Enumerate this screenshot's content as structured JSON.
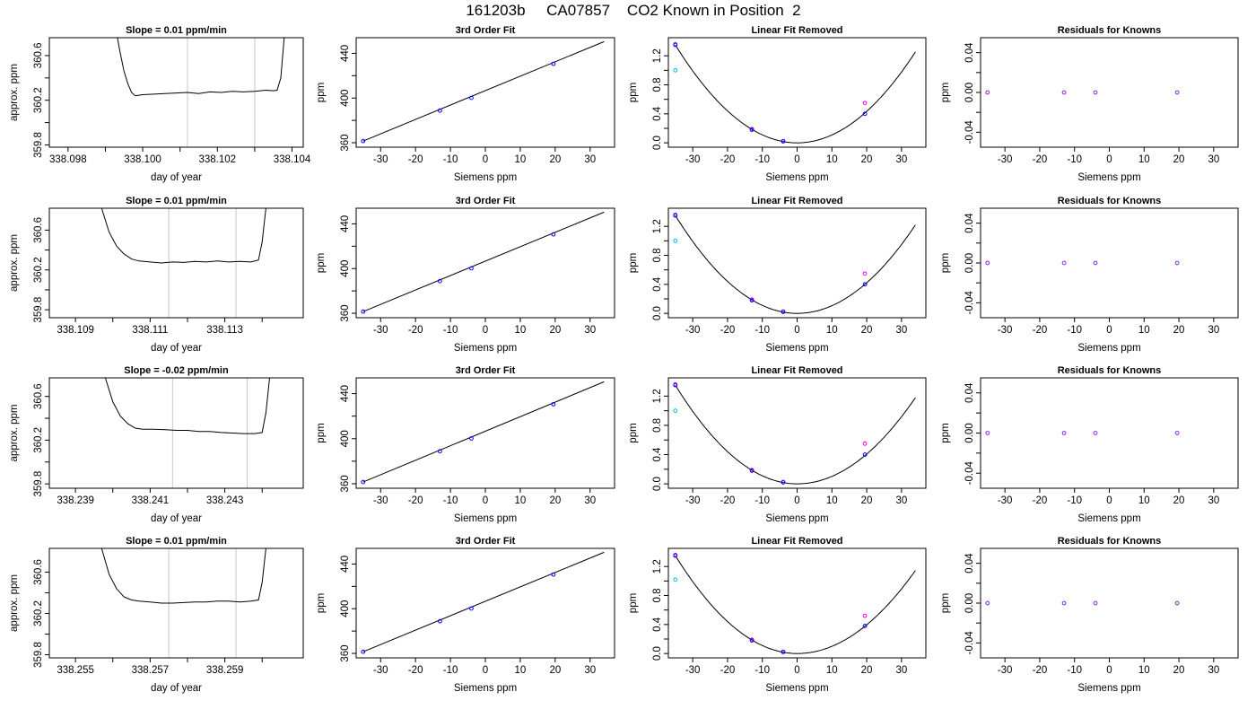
{
  "figure_title": "161203b     CA07857    CO2 Known in Position  2",
  "colors": {
    "trace": "#000000",
    "fit_line": "#000000",
    "marker_line": "#c8c8c8",
    "points_blue": "#0000ff",
    "points_magenta": "#ff00ff",
    "points_cyan": "#00bfff",
    "points_purple": "#8a2be2",
    "frame": "#000000"
  },
  "chart_data": [
    {
      "type": "line",
      "title": "Slope =  0.01  ppm/min",
      "xlabel": "day of year",
      "ylabel": "approx. ppm",
      "xlim": [
        338.0975,
        338.1043
      ],
      "ylim": [
        359.78,
        360.76
      ],
      "xticks": [
        338.098,
        338.099,
        338.1,
        338.101,
        338.102,
        338.103,
        338.104
      ],
      "xtick_labels": [
        "338.098",
        "",
        "338.100",
        "",
        "338.102",
        "",
        "338.104"
      ],
      "yticks": [
        359.8,
        360.0,
        360.2,
        360.4,
        360.6
      ],
      "ytick_labels": [
        "359.8",
        "",
        "360.2",
        "",
        "360.6"
      ],
      "vlines": [
        338.1012,
        338.103
      ],
      "trace": {
        "x": [
          338.0993,
          338.0994,
          338.0995,
          338.0996,
          338.0997,
          338.0998,
          338.0999,
          338.1,
          338.1003,
          338.1006,
          338.1009,
          338.1012,
          338.1015,
          338.1018,
          338.1021,
          338.1024,
          338.1027,
          338.103,
          338.1033,
          338.1035,
          338.1036,
          338.1037,
          338.1038
        ],
        "y": [
          360.8,
          360.62,
          360.46,
          360.35,
          360.27,
          360.24,
          360.245,
          360.25,
          360.255,
          360.26,
          360.265,
          360.27,
          360.26,
          360.275,
          360.27,
          360.28,
          360.275,
          360.28,
          360.29,
          360.285,
          360.29,
          360.4,
          360.8
        ]
      }
    },
    {
      "type": "scatter",
      "title": "3rd Order Fit",
      "xlabel": "Siemens ppm",
      "ylabel": "ppm",
      "xlim": [
        -37,
        37
      ],
      "ylim": [
        356,
        454
      ],
      "xticks": [
        -30,
        -20,
        -10,
        0,
        10,
        20,
        30
      ],
      "yticks": [
        360,
        380,
        400,
        420,
        440
      ],
      "ytick_labels": [
        "360",
        "",
        "400",
        "",
        "440"
      ],
      "line": {
        "x": [
          -35,
          34
        ],
        "y": [
          361.5,
          450.5
        ]
      },
      "points": {
        "x": [
          -35,
          -13,
          -4,
          19.5
        ],
        "y": [
          361.5,
          388.8,
          400.2,
          430.6
        ]
      }
    },
    {
      "type": "scatter",
      "title": "Linear Fit Removed",
      "xlabel": "Siemens ppm",
      "ylabel": "ppm",
      "xlim": [
        -37,
        37
      ],
      "ylim": [
        -0.06,
        1.45
      ],
      "xticks": [
        -30,
        -20,
        -10,
        0,
        10,
        20,
        30
      ],
      "yticks": [
        0.0,
        0.4,
        0.8,
        1.2
      ],
      "yminor": [
        0.2,
        0.6,
        1.0
      ],
      "curve": {
        "vertex_x": 0,
        "vertex_y": 0,
        "a_left": 0.001102,
        "a_right": 0.001085,
        "x_from": -35,
        "x_to": 34
      },
      "points_blue": {
        "x": [
          -35,
          -13,
          -4,
          19.5
        ],
        "y": [
          1.35,
          0.18,
          0.02,
          0.4
        ]
      },
      "points_magenta": {
        "x": [
          -35,
          -13,
          -4,
          19.5
        ],
        "y": [
          1.36,
          0.19,
          0.025,
          0.55
        ]
      },
      "points_cyan": {
        "x": [
          -35
        ],
        "y": [
          1.0
        ]
      }
    },
    {
      "type": "scatter",
      "title": "Residuals for Knowns",
      "xlabel": "Siemens ppm",
      "ylabel": "ppm",
      "xlim": [
        -37,
        37
      ],
      "ylim": [
        -0.055,
        0.055
      ],
      "xticks": [
        -30,
        -20,
        -10,
        0,
        10,
        20,
        30
      ],
      "yticks": [
        -0.04,
        -0.02,
        0.0,
        0.02,
        0.04
      ],
      "ytick_labels": [
        "-0.04",
        "",
        "0.00",
        "",
        "0.04"
      ],
      "points": {
        "x": [
          -35,
          -13,
          -4,
          19.5
        ],
        "y": [
          0,
          0,
          0,
          0
        ]
      }
    },
    {
      "type": "line",
      "title": "Slope =  0.01  ppm/min",
      "xlabel": "day of year",
      "ylabel": "approx. ppm",
      "xlim": [
        338.1083,
        338.1151
      ],
      "ylim": [
        359.72,
        360.82
      ],
      "xticks": [
        338.109,
        338.11,
        338.111,
        338.112,
        338.113,
        338.114
      ],
      "xtick_labels": [
        "338.109",
        "",
        "338.111",
        "",
        "338.113",
        ""
      ],
      "yticks": [
        359.8,
        360.0,
        360.2,
        360.4,
        360.6
      ],
      "ytick_labels": [
        "359.8",
        "",
        "360.2",
        "",
        "360.6"
      ],
      "vlines": [
        338.1115,
        338.1133
      ],
      "trace": {
        "x": [
          338.1097,
          338.1099,
          338.1101,
          338.1103,
          338.1105,
          338.1107,
          338.111,
          338.1113,
          338.1116,
          338.1119,
          338.1122,
          338.1125,
          338.1128,
          338.1131,
          338.1134,
          338.1137,
          338.1139,
          338.114,
          338.1141
        ],
        "y": [
          360.82,
          360.58,
          360.44,
          360.36,
          360.31,
          360.29,
          360.28,
          360.27,
          360.28,
          360.275,
          360.285,
          360.28,
          360.29,
          360.28,
          360.285,
          360.28,
          360.3,
          360.48,
          360.82
        ]
      }
    },
    {
      "type": "scatter",
      "title": "3rd Order Fit",
      "xlabel": "Siemens ppm",
      "ylabel": "ppm",
      "xlim": [
        -37,
        37
      ],
      "ylim": [
        356,
        454
      ],
      "xticks": [
        -30,
        -20,
        -10,
        0,
        10,
        20,
        30
      ],
      "yticks": [
        360,
        380,
        400,
        420,
        440
      ],
      "ytick_labels": [
        "360",
        "",
        "400",
        "",
        "440"
      ],
      "line": {
        "x": [
          -35,
          34
        ],
        "y": [
          361.5,
          450.5
        ]
      },
      "points": {
        "x": [
          -35,
          -13,
          -4,
          19.5
        ],
        "y": [
          361.5,
          388.8,
          400.2,
          430.6
        ]
      }
    },
    {
      "type": "scatter",
      "title": "Linear Fit Removed",
      "xlabel": "Siemens ppm",
      "ylabel": "ppm",
      "xlim": [
        -37,
        37
      ],
      "ylim": [
        -0.06,
        1.45
      ],
      "xticks": [
        -30,
        -20,
        -10,
        0,
        10,
        20,
        30
      ],
      "yticks": [
        0.0,
        0.4,
        0.8,
        1.2
      ],
      "yminor": [
        0.2,
        0.6,
        1.0
      ],
      "curve": {
        "vertex_x": 0,
        "vertex_y": 0,
        "a_left": 0.001102,
        "a_right": 0.001055,
        "x_from": -35,
        "x_to": 34
      },
      "points_blue": {
        "x": [
          -35,
          -13,
          -4,
          19.5
        ],
        "y": [
          1.35,
          0.18,
          0.02,
          0.4
        ]
      },
      "points_magenta": {
        "x": [
          -35,
          -13,
          -4,
          19.5
        ],
        "y": [
          1.36,
          0.19,
          0.025,
          0.55
        ]
      },
      "points_cyan": {
        "x": [
          -35
        ],
        "y": [
          1.0
        ]
      }
    },
    {
      "type": "scatter",
      "title": "Residuals for Knowns",
      "xlabel": "Siemens ppm",
      "ylabel": "ppm",
      "xlim": [
        -37,
        37
      ],
      "ylim": [
        -0.055,
        0.055
      ],
      "xticks": [
        -30,
        -20,
        -10,
        0,
        10,
        20,
        30
      ],
      "yticks": [
        -0.04,
        -0.02,
        0.0,
        0.02,
        0.04
      ],
      "ytick_labels": [
        "-0.04",
        "",
        "0.00",
        "",
        "0.04"
      ],
      "points": {
        "x": [
          -35,
          -13,
          -4,
          19.5
        ],
        "y": [
          0,
          0,
          0,
          0
        ]
      }
    },
    {
      "type": "line",
      "title": "Slope =  -0.02  ppm/min",
      "xlabel": "day of year",
      "ylabel": "approx. ppm",
      "xlim": [
        338.2383,
        338.2451
      ],
      "ylim": [
        359.76,
        360.77
      ],
      "xticks": [
        338.239,
        338.24,
        338.241,
        338.242,
        338.243,
        338.244
      ],
      "xtick_labels": [
        "338.239",
        "",
        "338.241",
        "",
        "338.243",
        ""
      ],
      "yticks": [
        359.8,
        360.0,
        360.2,
        360.4,
        360.6
      ],
      "ytick_labels": [
        "359.8",
        "",
        "360.2",
        "",
        "360.6"
      ],
      "vlines": [
        338.2416,
        338.2436
      ],
      "trace": {
        "x": [
          338.2398,
          338.24,
          338.2402,
          338.2404,
          338.2406,
          338.2408,
          338.2411,
          338.2414,
          338.2417,
          338.242,
          338.2423,
          338.2426,
          338.2429,
          338.2432,
          338.2435,
          338.2438,
          338.244,
          338.2441,
          338.2442
        ],
        "y": [
          360.77,
          360.55,
          360.42,
          360.35,
          360.31,
          360.3,
          360.3,
          360.295,
          360.29,
          360.29,
          360.28,
          360.28,
          360.27,
          360.265,
          360.26,
          360.26,
          360.27,
          360.45,
          360.77
        ]
      }
    },
    {
      "type": "scatter",
      "title": "3rd Order Fit",
      "xlabel": "Siemens ppm",
      "ylabel": "ppm",
      "xlim": [
        -37,
        37
      ],
      "ylim": [
        356,
        454
      ],
      "xticks": [
        -30,
        -20,
        -10,
        0,
        10,
        20,
        30
      ],
      "yticks": [
        360,
        380,
        400,
        420,
        440
      ],
      "ytick_labels": [
        "360",
        "",
        "400",
        "",
        "440"
      ],
      "line": {
        "x": [
          -35,
          34
        ],
        "y": [
          361.5,
          450.5
        ]
      },
      "points": {
        "x": [
          -35,
          -13,
          -4,
          19.5
        ],
        "y": [
          361.5,
          388.8,
          400.2,
          430.6
        ]
      }
    },
    {
      "type": "scatter",
      "title": "Linear Fit Removed",
      "xlabel": "Siemens ppm",
      "ylabel": "ppm",
      "xlim": [
        -37,
        37
      ],
      "ylim": [
        -0.06,
        1.45
      ],
      "xticks": [
        -30,
        -20,
        -10,
        0,
        10,
        20,
        30
      ],
      "yticks": [
        0.0,
        0.4,
        0.8,
        1.2
      ],
      "yminor": [
        0.2,
        0.6,
        1.0
      ],
      "curve": {
        "vertex_x": 0,
        "vertex_y": 0,
        "a_left": 0.001102,
        "a_right": 0.00102,
        "x_from": -35,
        "x_to": 34
      },
      "points_blue": {
        "x": [
          -35,
          -13,
          -4,
          19.5
        ],
        "y": [
          1.35,
          0.18,
          0.02,
          0.4
        ]
      },
      "points_magenta": {
        "x": [
          -35,
          -13,
          -4,
          19.5
        ],
        "y": [
          1.36,
          0.19,
          0.025,
          0.55
        ]
      },
      "points_cyan": {
        "x": [
          -35
        ],
        "y": [
          1.0
        ]
      }
    },
    {
      "type": "scatter",
      "title": "Residuals for Knowns",
      "xlabel": "Siemens ppm",
      "ylabel": "ppm",
      "xlim": [
        -37,
        37
      ],
      "ylim": [
        -0.055,
        0.055
      ],
      "xticks": [
        -30,
        -20,
        -10,
        0,
        10,
        20,
        30
      ],
      "yticks": [
        -0.04,
        -0.02,
        0.0,
        0.02,
        0.04
      ],
      "ytick_labels": [
        "-0.04",
        "",
        "0.00",
        "",
        "0.04"
      ],
      "points": {
        "x": [
          -35,
          -13,
          -4,
          19.5
        ],
        "y": [
          0,
          0,
          0,
          0
        ]
      }
    },
    {
      "type": "line",
      "title": "Slope =  0.01  ppm/min",
      "xlabel": "day of year",
      "ylabel": "approx. ppm",
      "xlim": [
        338.2543,
        338.2611
      ],
      "ylim": [
        359.77,
        360.83
      ],
      "xticks": [
        338.255,
        338.256,
        338.257,
        338.258,
        338.259,
        338.26
      ],
      "xtick_labels": [
        "338.255",
        "",
        "338.257",
        "",
        "338.259",
        ""
      ],
      "yticks": [
        359.8,
        360.0,
        360.2,
        360.4,
        360.6
      ],
      "ytick_labels": [
        "359.8",
        "",
        "360.2",
        "",
        "360.6"
      ],
      "vlines": [
        338.2575,
        338.2593
      ],
      "trace": {
        "x": [
          338.2557,
          338.2559,
          338.2561,
          338.2563,
          338.2565,
          338.2567,
          338.257,
          338.2573,
          338.2576,
          338.2579,
          338.2582,
          338.2585,
          338.2588,
          338.2591,
          338.2594,
          338.2597,
          338.2599,
          338.26,
          338.2601
        ],
        "y": [
          360.83,
          360.58,
          360.44,
          360.36,
          360.33,
          360.32,
          360.31,
          360.3,
          360.3,
          360.305,
          360.31,
          360.31,
          360.32,
          360.32,
          360.31,
          360.32,
          360.33,
          360.5,
          360.83
        ]
      }
    },
    {
      "type": "scatter",
      "title": "3rd Order Fit",
      "xlabel": "Siemens ppm",
      "ylabel": "ppm",
      "xlim": [
        -37,
        37
      ],
      "ylim": [
        356,
        454
      ],
      "xticks": [
        -30,
        -20,
        -10,
        0,
        10,
        20,
        30
      ],
      "yticks": [
        360,
        380,
        400,
        420,
        440
      ],
      "ytick_labels": [
        "360",
        "",
        "400",
        "",
        "440"
      ],
      "line": {
        "x": [
          -35,
          34
        ],
        "y": [
          361.5,
          450.5
        ]
      },
      "points": {
        "x": [
          -35,
          -13,
          -4,
          19.5
        ],
        "y": [
          361.5,
          388.8,
          400.2,
          430.6
        ]
      }
    },
    {
      "type": "scatter",
      "title": "Linear Fit Removed",
      "xlabel": "Siemens ppm",
      "ylabel": "ppm",
      "xlim": [
        -37,
        37
      ],
      "ylim": [
        -0.06,
        1.45
      ],
      "xticks": [
        -30,
        -20,
        -10,
        0,
        10,
        20,
        30
      ],
      "yticks": [
        0.0,
        0.4,
        0.8,
        1.2
      ],
      "yminor": [
        0.2,
        0.6,
        1.0
      ],
      "curve": {
        "vertex_x": 0,
        "vertex_y": 0,
        "a_left": 0.001102,
        "a_right": 0.00099,
        "x_from": -35,
        "x_to": 34
      },
      "points_blue": {
        "x": [
          -35,
          -13,
          -4,
          19.5
        ],
        "y": [
          1.35,
          0.18,
          0.02,
          0.38
        ]
      },
      "points_magenta": {
        "x": [
          -35,
          -13,
          -4,
          19.5
        ],
        "y": [
          1.36,
          0.19,
          0.025,
          0.52
        ]
      },
      "points_cyan": {
        "x": [
          -35
        ],
        "y": [
          1.02
        ]
      }
    },
    {
      "type": "scatter",
      "title": "Residuals for Knowns",
      "xlabel": "Siemens ppm",
      "ylabel": "ppm",
      "xlim": [
        -37,
        37
      ],
      "ylim": [
        -0.055,
        0.055
      ],
      "xticks": [
        -30,
        -20,
        -10,
        0,
        10,
        20,
        30
      ],
      "yticks": [
        -0.04,
        -0.02,
        0.0,
        0.02,
        0.04
      ],
      "ytick_labels": [
        "-0.04",
        "",
        "0.00",
        "",
        "0.04"
      ],
      "points": {
        "x": [
          -35,
          -13,
          -4,
          19.5
        ],
        "y": [
          0,
          0,
          0,
          0
        ]
      }
    }
  ]
}
